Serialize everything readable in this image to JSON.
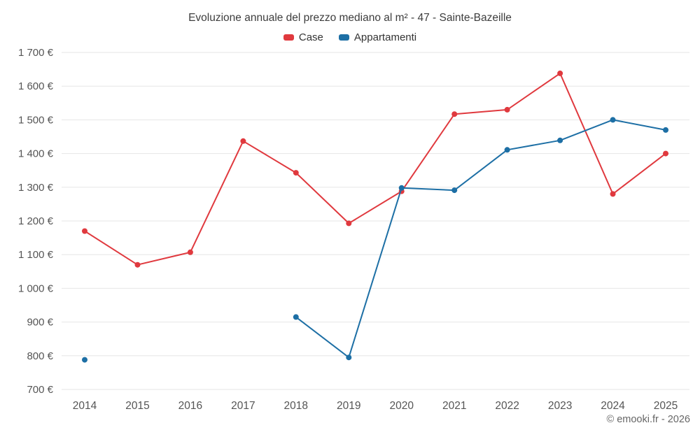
{
  "chart_data": {
    "type": "line",
    "title": "Evoluzione annuale del prezzo mediano al m² - 47 - Sainte-Bazeille",
    "categories": [
      "2014",
      "2015",
      "2016",
      "2017",
      "2018",
      "2019",
      "2020",
      "2021",
      "2022",
      "2023",
      "2024",
      "2025"
    ],
    "series": [
      {
        "name": "Case",
        "color": "#e0393e",
        "values": [
          1170,
          1070,
          1107,
          1437,
          1343,
          1193,
          1288,
          1517,
          1530,
          1638,
          1280,
          1400
        ]
      },
      {
        "name": "Appartamenti",
        "color": "#1d6fa5",
        "values": [
          788,
          null,
          null,
          null,
          915,
          795,
          1298,
          1291,
          1411,
          1439,
          1500,
          1470
        ]
      }
    ],
    "ylim": [
      700,
      1700
    ],
    "ytick_values": [
      700,
      800,
      900,
      1000,
      1100,
      1200,
      1300,
      1400,
      1500,
      1600,
      1700
    ],
    "ytick_labels": [
      "700 €",
      "800 €",
      "900 €",
      "1 000 €",
      "1 100 €",
      "1 200 €",
      "1 300 €",
      "1 400 €",
      "1 500 €",
      "1 600 €",
      "1 700 €"
    ],
    "y_suffix": " €",
    "grid": "horizontal",
    "legend_position": "top"
  },
  "footer": {
    "credit": "© emooki.fr - 2026"
  }
}
